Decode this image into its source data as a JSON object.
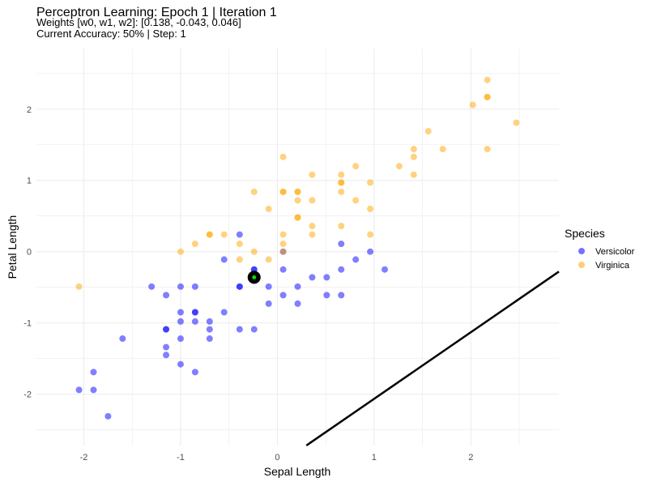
{
  "chart_data": {
    "type": "scatter",
    "title": "Perceptron Learning: Epoch 1 | Iteration 1",
    "subtitle_lines": [
      "Weights [w0, w1, w2]: [0.138, -0.043, 0.046]",
      "Current Accuracy: 50% | Step: 1"
    ],
    "xlabel": "Sepal Length",
    "ylabel": "Petal Length",
    "xlim": [
      -2.49,
      2.91
    ],
    "ylim": [
      -2.72,
      2.85
    ],
    "xticks": [
      -2,
      -1,
      0,
      1,
      2
    ],
    "yticks": [
      -2,
      -1,
      0,
      1,
      2
    ],
    "grid": true,
    "legend": {
      "title": "Species",
      "placement": "right"
    },
    "weights": [
      0.138,
      -0.043,
      0.046
    ],
    "series": [
      {
        "name": "Versicolor",
        "color": "#0000ff",
        "points": [
          [
            -0.39,
            0.24
          ],
          [
            -0.55,
            -0.11
          ],
          [
            -0.24,
            -0.25
          ],
          [
            0.06,
            -0.25
          ],
          [
            -1.3,
            -0.49
          ],
          [
            -1.0,
            -0.49
          ],
          [
            -0.85,
            -0.49
          ],
          [
            -0.39,
            -0.49
          ],
          [
            -0.39,
            -0.49
          ],
          [
            -0.09,
            -0.49
          ],
          [
            -1.15,
            -0.61
          ],
          [
            0.06,
            -0.61
          ],
          [
            -0.09,
            -0.73
          ],
          [
            -1.0,
            -0.85
          ],
          [
            -0.85,
            -0.85
          ],
          [
            -0.85,
            -0.85
          ],
          [
            -0.55,
            -0.85
          ],
          [
            -1.0,
            -0.98
          ],
          [
            -0.85,
            -0.98
          ],
          [
            -0.7,
            -0.98
          ],
          [
            -1.15,
            -1.09
          ],
          [
            -1.15,
            -1.09
          ],
          [
            -0.7,
            -1.09
          ],
          [
            -0.39,
            -1.09
          ],
          [
            -0.24,
            -1.09
          ],
          [
            -1.6,
            -1.22
          ],
          [
            -1.0,
            -1.22
          ],
          [
            -0.7,
            -1.22
          ],
          [
            -1.15,
            -1.34
          ],
          [
            -1.15,
            -1.45
          ],
          [
            -1.0,
            -1.58
          ],
          [
            -0.85,
            -1.69
          ],
          [
            -1.9,
            -1.69
          ],
          [
            -2.05,
            -1.94
          ],
          [
            -1.9,
            -1.94
          ],
          [
            -1.75,
            -2.31
          ],
          [
            0.66,
            0.11
          ],
          [
            0.96,
            0.0
          ],
          [
            0.81,
            -0.11
          ],
          [
            0.66,
            -0.25
          ],
          [
            1.11,
            -0.25
          ],
          [
            0.36,
            -0.36
          ],
          [
            0.51,
            -0.36
          ],
          [
            0.21,
            -0.49
          ],
          [
            0.51,
            -0.61
          ],
          [
            0.66,
            -0.61
          ],
          [
            0.21,
            -0.73
          ],
          [
            0.06,
            0.0
          ],
          [
            -0.24,
            -0.36
          ],
          [
            -0.24,
            -0.25
          ]
        ]
      },
      {
        "name": "Virginica",
        "color": "#ffa500",
        "points": [
          [
            2.17,
            2.41
          ],
          [
            2.17,
            2.17
          ],
          [
            2.17,
            2.17
          ],
          [
            2.02,
            2.06
          ],
          [
            2.47,
            1.81
          ],
          [
            1.56,
            1.69
          ],
          [
            1.41,
            1.44
          ],
          [
            1.71,
            1.44
          ],
          [
            2.17,
            1.44
          ],
          [
            1.41,
            1.33
          ],
          [
            0.06,
            1.33
          ],
          [
            0.81,
            1.2
          ],
          [
            1.26,
            1.2
          ],
          [
            0.36,
            1.08
          ],
          [
            0.66,
            1.08
          ],
          [
            1.41,
            1.08
          ],
          [
            0.66,
            0.97
          ],
          [
            0.66,
            0.97
          ],
          [
            0.96,
            0.97
          ],
          [
            -0.24,
            0.84
          ],
          [
            0.06,
            0.84
          ],
          [
            0.06,
            0.84
          ],
          [
            0.21,
            0.84
          ],
          [
            0.21,
            0.84
          ],
          [
            0.66,
            0.84
          ],
          [
            0.21,
            0.72
          ],
          [
            0.36,
            0.72
          ],
          [
            0.81,
            0.72
          ],
          [
            -0.09,
            0.6
          ],
          [
            0.96,
            0.6
          ],
          [
            0.21,
            0.48
          ],
          [
            0.21,
            0.48
          ],
          [
            0.36,
            0.36
          ],
          [
            0.66,
            0.36
          ],
          [
            -0.7,
            0.24
          ],
          [
            -0.7,
            0.24
          ],
          [
            -0.55,
            0.24
          ],
          [
            0.06,
            0.24
          ],
          [
            0.36,
            0.24
          ],
          [
            0.96,
            0.24
          ],
          [
            -0.85,
            0.11
          ],
          [
            -0.39,
            0.11
          ],
          [
            0.06,
            0.11
          ],
          [
            -1.0,
            0.0
          ],
          [
            -0.24,
            0.0
          ],
          [
            0.06,
            0.0
          ],
          [
            -0.39,
            -0.11
          ],
          [
            -0.09,
            -0.11
          ],
          [
            -2.05,
            -0.49
          ]
        ]
      }
    ],
    "highlighted_point": [
      -0.24,
      -0.36
    ]
  }
}
